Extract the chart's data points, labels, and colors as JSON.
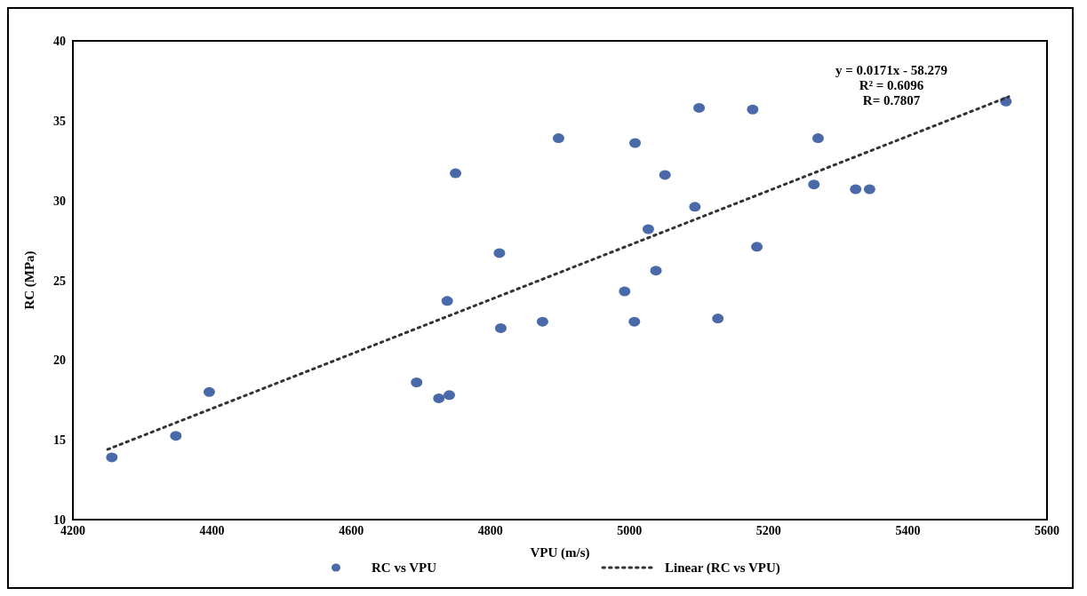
{
  "chart_data": {
    "type": "scatter",
    "xlabel": "VPU (m/s)",
    "ylabel": "RC (MPa)",
    "xlim": [
      4200,
      5600
    ],
    "xticks": [
      4200,
      4400,
      4600,
      4800,
      5000,
      5200,
      5400,
      5600
    ],
    "ylim": [
      10,
      40
    ],
    "yticks": [
      10,
      15,
      20,
      25,
      30,
      35,
      40
    ],
    "grid": false,
    "legend": "bottom",
    "annotations": [
      "y = 0.0171x - 58.279",
      "R² = 0.6096",
      "R= 0.7807"
    ],
    "series": [
      {
        "name": "RC vs VPU",
        "marker": "circle",
        "color": "#4a69a8",
        "x": [
          4256,
          4348,
          4396,
          4694,
          4726,
          4741,
          4738,
          4750,
          4813,
          4815,
          4875,
          4898,
          5008,
          5100,
          5177,
          5051,
          5094,
          5027,
          5038,
          4993,
          5007,
          5127,
          5183,
          5271,
          5265,
          5325,
          5345,
          5541
        ],
        "values": [
          13.9,
          15.25,
          18.0,
          18.6,
          17.6,
          17.8,
          23.7,
          31.7,
          26.7,
          22.0,
          22.4,
          33.9,
          33.6,
          35.8,
          35.7,
          31.6,
          29.6,
          28.2,
          25.6,
          24.3,
          22.4,
          22.6,
          27.1,
          33.9,
          31.0,
          30.7,
          30.7,
          36.2
        ]
      },
      {
        "name": "Linear (RC vs VPU)",
        "type": "line",
        "color": "#333333",
        "line_style": "dotted",
        "x": [
          4250,
          5545
        ],
        "values": [
          14.4,
          36.5
        ]
      }
    ]
  }
}
